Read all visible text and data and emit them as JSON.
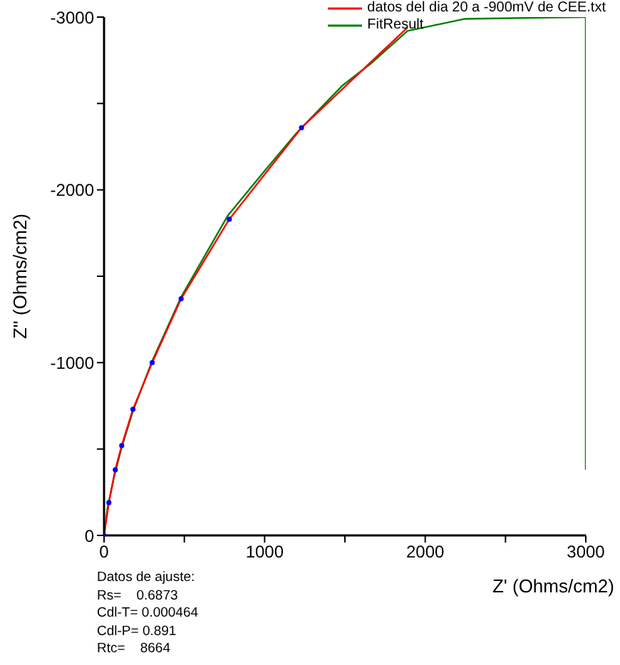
{
  "chart_data": {
    "type": "line",
    "xlabel": "Z' (Ohms/cm2)",
    "ylabel": "Z'' (Ohms/cm2)",
    "xlim": [
      0,
      3000
    ],
    "xticks": [
      0,
      {
        "value": 500,
        "label": null
      },
      1000,
      {
        "value": 1500,
        "label": null
      },
      2000,
      {
        "value": 2500,
        "label": null
      },
      3000
    ],
    "ylim": [
      0,
      -3000
    ],
    "yticks": [
      0,
      {
        "value": -500,
        "label": null
      },
      -1000,
      {
        "value": -1500,
        "label": null
      },
      -2000,
      {
        "value": -2500,
        "label": null
      },
      -3000
    ],
    "grid": false,
    "legend": "top right",
    "marker": "none",
    "line_style": "solid",
    "series": [
      {
        "name": "datos del dia 20 a -900mV de CEE.txt",
        "color": "#ff0000",
        "x": [
          0,
          30,
          70,
          110,
          180,
          300,
          480,
          780,
          1230,
          1890
        ],
        "values": [
          0,
          -190,
          -380,
          -520,
          -730,
          -1000,
          -1370,
          -1830,
          -2360,
          -2940
        ]
      },
      {
        "name": "FitResult",
        "color": "#008000",
        "x": [
          0,
          20,
          60,
          110,
          180,
          300,
          480,
          770,
          1000,
          1200,
          1480,
          1660,
          1890,
          2250,
          2990,
          3000,
          3000
        ],
        "values": [
          0,
          -150,
          -330,
          -510,
          -720,
          -1010,
          -1380,
          -1850,
          -2110,
          -2330,
          -2600,
          -2730,
          -2920,
          -2990,
          -3000,
          -3000,
          -380
        ]
      },
      {
        "type": "scatter",
        "color": "#0000ff",
        "marker": "circle",
        "x": [
          0,
          30,
          70,
          110,
          180,
          300,
          480,
          780,
          1230
        ],
        "values": [
          0,
          -190,
          -380,
          -520,
          -730,
          -1000,
          -1370,
          -1830,
          -2360
        ]
      }
    ],
    "annotations": [
      "Datos de ajuste:",
      "Rs=    0.6873",
      "Cdl-T= 0.000464",
      "Cdl-P= 0.891",
      "Rtc=    8664"
    ]
  }
}
